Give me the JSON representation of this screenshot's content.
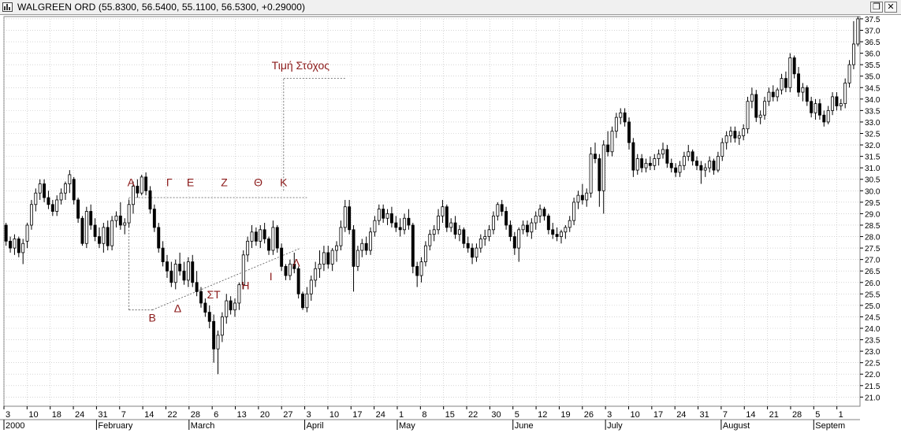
{
  "window": {
    "title": "WALGREEN ORD (55.8300, 56.5400, 55.1100, 56.5300, +0.29000)",
    "restore_glyph": "❐",
    "close_glyph": "✕"
  },
  "colors": {
    "candle": "#000000",
    "grid": "#bcbcbc",
    "annotation": "#8b1a1a",
    "axis": "#808080"
  },
  "chart_data": {
    "type": "candlestick",
    "title": "",
    "y_range": [
      20.6,
      37.6
    ],
    "y_ticks": [
      "37.5",
      "37.0",
      "36.5",
      "36.0",
      "35.5",
      "35.0",
      "34.5",
      "34.0",
      "33.5",
      "33.0",
      "32.5",
      "32.0",
      "31.5",
      "31.0",
      "30.5",
      "30.0",
      "29.5",
      "29.0",
      "28.5",
      "28.0",
      "27.5",
      "27.0",
      "26.5",
      "26.0",
      "25.5",
      "25.0",
      "24.5",
      "24.0",
      "23.5",
      "23.0",
      "22.5",
      "22.0",
      "21.5",
      "21.0"
    ],
    "x_day_labels": [
      "3",
      "10",
      "18",
      "24",
      "31",
      "7",
      "14",
      "22",
      "28",
      "6",
      "13",
      "20",
      "27",
      "3",
      "10",
      "17",
      "24",
      "1",
      "8",
      "15",
      "22",
      "30",
      "5",
      "12",
      "19",
      "26",
      "3",
      "10",
      "17",
      "24",
      "31",
      "7",
      "14",
      "21",
      "28",
      "5",
      "1"
    ],
    "x_month_labels": [
      {
        "label": "2000",
        "at_day": "3"
      },
      {
        "label": "February",
        "at_day": "31"
      },
      {
        "label": "March",
        "at_day": "28"
      },
      {
        "label": "April",
        "at_day": "3"
      },
      {
        "label": "May",
        "at_day": "1"
      },
      {
        "label": "June",
        "at_day": "5"
      },
      {
        "label": "July",
        "at_day": "3"
      },
      {
        "label": "August",
        "at_day": "7"
      },
      {
        "label": "Septem",
        "at_day": "5"
      }
    ],
    "candles": [
      [
        28.5,
        28.6,
        27.6,
        27.8
      ],
      [
        27.8,
        28.0,
        27.3,
        27.5
      ],
      [
        27.5,
        28.1,
        27.2,
        27.9
      ],
      [
        27.9,
        28.0,
        27.1,
        27.3
      ],
      [
        27.3,
        27.9,
        26.8,
        27.7
      ],
      [
        27.8,
        28.6,
        27.5,
        28.5
      ],
      [
        28.5,
        29.6,
        28.3,
        29.4
      ],
      [
        29.4,
        30.1,
        29.1,
        29.9
      ],
      [
        29.9,
        30.5,
        29.6,
        30.3
      ],
      [
        30.3,
        30.5,
        29.5,
        29.7
      ],
      [
        29.7,
        30.0,
        29.2,
        29.4
      ],
      [
        29.4,
        29.6,
        28.9,
        29.1
      ],
      [
        29.1,
        29.8,
        28.9,
        29.6
      ],
      [
        29.6,
        30.1,
        29.4,
        29.9
      ],
      [
        29.9,
        30.4,
        29.6,
        30.3
      ],
      [
        30.3,
        30.9,
        29.9,
        30.7
      ],
      [
        30.5,
        30.6,
        29.4,
        29.6
      ],
      [
        29.6,
        29.7,
        28.6,
        28.8
      ],
      [
        28.8,
        28.9,
        27.6,
        27.7
      ],
      [
        27.7,
        29.3,
        27.5,
        29.1
      ],
      [
        29.1,
        29.4,
        28.3,
        28.5
      ],
      [
        28.5,
        28.8,
        27.8,
        28.0
      ],
      [
        28.0,
        28.4,
        27.5,
        27.7
      ],
      [
        27.7,
        28.6,
        27.3,
        28.4
      ],
      [
        28.4,
        28.7,
        27.4,
        27.6
      ],
      [
        27.6,
        28.9,
        27.4,
        28.7
      ],
      [
        28.7,
        29.1,
        28.4,
        28.9
      ],
      [
        28.9,
        29.5,
        28.3,
        28.5
      ],
      [
        28.5,
        28.8,
        28.1,
        28.6
      ],
      [
        28.6,
        29.6,
        28.4,
        29.4
      ],
      [
        29.4,
        30.4,
        29.0,
        30.2
      ],
      [
        30.2,
        30.5,
        29.7,
        29.9
      ],
      [
        29.9,
        30.7,
        29.8,
        30.6
      ],
      [
        30.6,
        30.8,
        29.8,
        30.0
      ],
      [
        30.0,
        30.2,
        29.0,
        29.2
      ],
      [
        29.2,
        29.4,
        28.2,
        28.4
      ],
      [
        28.4,
        28.6,
        27.3,
        27.5
      ],
      [
        27.5,
        27.8,
        26.7,
        26.9
      ],
      [
        26.9,
        27.2,
        26.2,
        26.5
      ],
      [
        26.5,
        26.9,
        25.8,
        26.0
      ],
      [
        26.0,
        27.0,
        25.7,
        26.8
      ],
      [
        26.8,
        27.3,
        26.3,
        26.5
      ],
      [
        26.5,
        26.9,
        25.9,
        26.1
      ],
      [
        26.1,
        27.1,
        25.8,
        26.9
      ],
      [
        26.9,
        27.2,
        25.8,
        26.0
      ],
      [
        26.0,
        26.5,
        25.4,
        25.6
      ],
      [
        25.6,
        25.8,
        24.9,
        25.1
      ],
      [
        25.1,
        25.3,
        24.5,
        24.7
      ],
      [
        24.7,
        25.0,
        24.0,
        24.3
      ],
      [
        24.3,
        24.6,
        22.5,
        23.1
      ],
      [
        23.1,
        23.9,
        22.0,
        23.7
      ],
      [
        23.7,
        24.7,
        23.4,
        24.5
      ],
      [
        24.5,
        25.5,
        24.2,
        25.2
      ],
      [
        25.2,
        25.4,
        24.6,
        24.8
      ],
      [
        24.8,
        25.3,
        24.5,
        25.1
      ],
      [
        25.1,
        26.0,
        24.8,
        25.9
      ],
      [
        25.9,
        27.4,
        25.7,
        27.2
      ],
      [
        27.2,
        28.0,
        26.9,
        27.8
      ],
      [
        27.8,
        28.5,
        27.5,
        28.2
      ],
      [
        28.2,
        28.4,
        27.6,
        27.8
      ],
      [
        27.8,
        28.5,
        27.5,
        28.3
      ],
      [
        28.3,
        28.6,
        27.7,
        27.9
      ],
      [
        27.9,
        28.0,
        27.2,
        27.4
      ],
      [
        27.4,
        28.7,
        27.2,
        28.4
      ],
      [
        28.4,
        28.5,
        27.3,
        27.5
      ],
      [
        27.5,
        27.7,
        26.5,
        26.7
      ],
      [
        26.7,
        26.8,
        26.1,
        26.3
      ],
      [
        26.3,
        27.0,
        26.1,
        26.8
      ],
      [
        26.8,
        27.3,
        26.4,
        26.6
      ],
      [
        26.6,
        26.7,
        25.3,
        25.5
      ],
      [
        25.5,
        25.6,
        24.8,
        24.9
      ],
      [
        24.9,
        25.8,
        24.7,
        25.5
      ],
      [
        25.5,
        26.3,
        25.2,
        26.1
      ],
      [
        26.1,
        26.9,
        25.8,
        26.6
      ],
      [
        26.6,
        27.4,
        26.2,
        26.8
      ],
      [
        26.8,
        27.6,
        26.5,
        27.3
      ],
      [
        27.3,
        27.6,
        26.6,
        26.8
      ],
      [
        26.8,
        27.5,
        26.5,
        27.4
      ],
      [
        27.4,
        27.8,
        26.9,
        27.6
      ],
      [
        27.6,
        28.7,
        27.4,
        28.4
      ],
      [
        28.4,
        29.6,
        28.2,
        29.3
      ],
      [
        29.3,
        29.6,
        28.1,
        28.3
      ],
      [
        28.3,
        28.5,
        25.6,
        26.7
      ],
      [
        26.7,
        27.6,
        26.5,
        27.4
      ],
      [
        27.4,
        27.9,
        27.1,
        27.7
      ],
      [
        27.7,
        28.0,
        27.2,
        27.4
      ],
      [
        27.4,
        28.4,
        27.2,
        28.2
      ],
      [
        28.2,
        28.9,
        28.0,
        28.7
      ],
      [
        28.7,
        29.4,
        28.5,
        29.2
      ],
      [
        29.2,
        29.4,
        28.6,
        28.8
      ],
      [
        28.8,
        29.2,
        28.5,
        29.0
      ],
      [
        29.0,
        29.3,
        28.4,
        28.6
      ],
      [
        28.6,
        28.9,
        28.2,
        28.4
      ],
      [
        28.4,
        28.8,
        28.0,
        28.3
      ],
      [
        28.3,
        29.0,
        28.1,
        28.8
      ],
      [
        28.8,
        29.2,
        28.3,
        28.5
      ],
      [
        28.5,
        28.6,
        26.4,
        26.7
      ],
      [
        26.7,
        26.9,
        25.8,
        26.3
      ],
      [
        26.3,
        27.1,
        26.0,
        26.9
      ],
      [
        26.9,
        27.8,
        26.7,
        27.6
      ],
      [
        27.6,
        28.3,
        27.4,
        28.1
      ],
      [
        28.1,
        28.5,
        27.8,
        28.3
      ],
      [
        28.3,
        29.2,
        28.1,
        28.9
      ],
      [
        28.9,
        29.6,
        28.6,
        29.3
      ],
      [
        29.3,
        29.4,
        28.2,
        28.4
      ],
      [
        28.4,
        28.8,
        28.2,
        28.6
      ],
      [
        28.6,
        28.9,
        27.9,
        28.1
      ],
      [
        28.1,
        28.5,
        27.8,
        28.3
      ],
      [
        28.3,
        28.4,
        27.5,
        27.7
      ],
      [
        27.7,
        28.0,
        27.3,
        27.5
      ],
      [
        27.5,
        27.7,
        26.8,
        27.1
      ],
      [
        27.1,
        27.7,
        26.9,
        27.5
      ],
      [
        27.5,
        28.1,
        27.3,
        27.9
      ],
      [
        27.9,
        28.3,
        27.6,
        28.0
      ],
      [
        28.0,
        28.5,
        27.8,
        28.3
      ],
      [
        28.3,
        29.1,
        28.1,
        28.9
      ],
      [
        28.9,
        29.5,
        28.7,
        29.4
      ],
      [
        29.4,
        29.6,
        28.9,
        29.1
      ],
      [
        29.1,
        29.3,
        28.3,
        28.5
      ],
      [
        28.5,
        28.7,
        27.8,
        28.0
      ],
      [
        28.0,
        28.2,
        27.2,
        27.5
      ],
      [
        27.5,
        28.4,
        26.9,
        28.3
      ],
      [
        28.3,
        28.7,
        28.1,
        28.5
      ],
      [
        28.5,
        28.7,
        28.0,
        28.2
      ],
      [
        28.2,
        28.8,
        27.9,
        28.6
      ],
      [
        28.6,
        29.1,
        28.3,
        28.9
      ],
      [
        28.9,
        29.4,
        28.6,
        29.2
      ],
      [
        29.2,
        29.3,
        28.7,
        28.9
      ],
      [
        28.9,
        29.0,
        28.1,
        28.3
      ],
      [
        28.3,
        28.6,
        27.9,
        28.1
      ],
      [
        28.1,
        28.4,
        27.8,
        28.0
      ],
      [
        28.0,
        28.3,
        27.7,
        28.2
      ],
      [
        28.2,
        28.5,
        27.9,
        28.4
      ],
      [
        28.4,
        28.9,
        28.2,
        28.7
      ],
      [
        28.7,
        29.7,
        28.5,
        29.5
      ],
      [
        29.5,
        30.0,
        29.2,
        29.8
      ],
      [
        29.8,
        30.3,
        29.4,
        29.6
      ],
      [
        29.6,
        30.1,
        29.3,
        29.9
      ],
      [
        29.9,
        31.9,
        29.7,
        31.6
      ],
      [
        31.6,
        32.1,
        31.2,
        31.4
      ],
      [
        31.4,
        31.6,
        29.3,
        30.0
      ],
      [
        30.0,
        32.2,
        29.0,
        32.0
      ],
      [
        32.0,
        32.6,
        31.5,
        31.7
      ],
      [
        31.7,
        32.8,
        31.5,
        32.6
      ],
      [
        32.6,
        33.4,
        32.3,
        33.2
      ],
      [
        33.2,
        33.6,
        32.9,
        33.4
      ],
      [
        33.4,
        33.6,
        32.8,
        33.0
      ],
      [
        33.0,
        33.2,
        31.8,
        32.1
      ],
      [
        32.1,
        32.3,
        30.6,
        30.9
      ],
      [
        30.9,
        31.6,
        30.7,
        31.4
      ],
      [
        31.4,
        31.6,
        30.8,
        31.0
      ],
      [
        31.0,
        31.4,
        30.8,
        31.2
      ],
      [
        31.2,
        31.5,
        30.9,
        31.1
      ],
      [
        31.1,
        31.6,
        30.9,
        31.4
      ],
      [
        31.4,
        31.8,
        31.1,
        31.6
      ],
      [
        31.6,
        32.1,
        31.4,
        31.8
      ],
      [
        31.8,
        32.0,
        31.0,
        31.2
      ],
      [
        31.2,
        31.4,
        30.8,
        31.0
      ],
      [
        31.0,
        31.2,
        30.6,
        30.8
      ],
      [
        30.8,
        31.3,
        30.6,
        31.1
      ],
      [
        31.1,
        31.7,
        30.9,
        31.5
      ],
      [
        31.5,
        32.0,
        31.3,
        31.7
      ],
      [
        31.7,
        31.8,
        31.1,
        31.3
      ],
      [
        31.3,
        31.5,
        30.9,
        31.1
      ],
      [
        31.1,
        31.3,
        30.3,
        30.9
      ],
      [
        30.9,
        31.2,
        30.6,
        31.0
      ],
      [
        31.0,
        31.5,
        30.8,
        31.3
      ],
      [
        31.3,
        31.4,
        30.7,
        30.9
      ],
      [
        30.9,
        31.7,
        30.8,
        31.5
      ],
      [
        31.5,
        32.3,
        31.3,
        32.1
      ],
      [
        32.1,
        32.6,
        31.8,
        32.4
      ],
      [
        32.4,
        32.8,
        32.1,
        32.6
      ],
      [
        32.6,
        32.8,
        32.1,
        32.3
      ],
      [
        32.3,
        32.6,
        32.0,
        32.4
      ],
      [
        32.4,
        32.9,
        32.2,
        32.7
      ],
      [
        32.7,
        34.1,
        32.5,
        33.9
      ],
      [
        33.9,
        34.5,
        33.6,
        34.2
      ],
      [
        34.2,
        34.4,
        33.0,
        33.2
      ],
      [
        33.2,
        33.5,
        32.9,
        33.3
      ],
      [
        33.3,
        34.1,
        33.1,
        33.9
      ],
      [
        33.9,
        34.5,
        33.7,
        34.3
      ],
      [
        34.3,
        34.6,
        33.9,
        34.1
      ],
      [
        34.1,
        34.5,
        33.9,
        34.4
      ],
      [
        34.4,
        35.1,
        34.2,
        34.9
      ],
      [
        34.9,
        35.2,
        34.3,
        34.5
      ],
      [
        34.5,
        36.0,
        34.3,
        35.8
      ],
      [
        35.8,
        35.9,
        34.9,
        35.1
      ],
      [
        35.1,
        35.4,
        34.1,
        34.3
      ],
      [
        34.3,
        34.7,
        33.9,
        34.5
      ],
      [
        34.5,
        34.6,
        33.7,
        33.9
      ],
      [
        33.9,
        34.1,
        33.2,
        33.4
      ],
      [
        33.4,
        34.0,
        33.1,
        33.8
      ],
      [
        33.8,
        34.0,
        33.1,
        33.3
      ],
      [
        33.3,
        33.5,
        32.8,
        33.0
      ],
      [
        33.0,
        33.7,
        32.9,
        33.5
      ],
      [
        33.5,
        34.3,
        33.3,
        34.1
      ],
      [
        34.1,
        34.3,
        33.5,
        33.7
      ],
      [
        33.7,
        34.0,
        33.5,
        33.8
      ],
      [
        33.8,
        34.9,
        33.6,
        34.7
      ],
      [
        34.7,
        35.7,
        34.5,
        35.5
      ],
      [
        35.5,
        37.4,
        35.3,
        36.4
      ],
      [
        36.4,
        37.6,
        36.3,
        37.5
      ]
    ],
    "annotations": [
      {
        "label": "Α",
        "x": 29.5,
        "y": 30.2
      },
      {
        "label": "Γ",
        "x": 38.5,
        "y": 30.2
      },
      {
        "label": "Ε",
        "x": 43.5,
        "y": 30.2
      },
      {
        "label": "Ζ",
        "x": 51.5,
        "y": 30.2
      },
      {
        "label": "Θ",
        "x": 59.5,
        "y": 30.2
      },
      {
        "label": "Κ",
        "x": 65.5,
        "y": 30.2
      },
      {
        "label": "Β",
        "x": 34.5,
        "y": 24.3
      },
      {
        "label": "Δ",
        "x": 40.5,
        "y": 24.7
      },
      {
        "label": "ΣΤ",
        "x": 49.0,
        "y": 25.3
      },
      {
        "label": "Η",
        "x": 56.5,
        "y": 25.7
      },
      {
        "label": "Ι",
        "x": 62.5,
        "y": 26.1
      },
      {
        "label": "Λ",
        "x": 68.5,
        "y": 26.7
      },
      {
        "label": "Τιμή Στόχος",
        "x": 69.5,
        "y": 35.3
      }
    ]
  }
}
